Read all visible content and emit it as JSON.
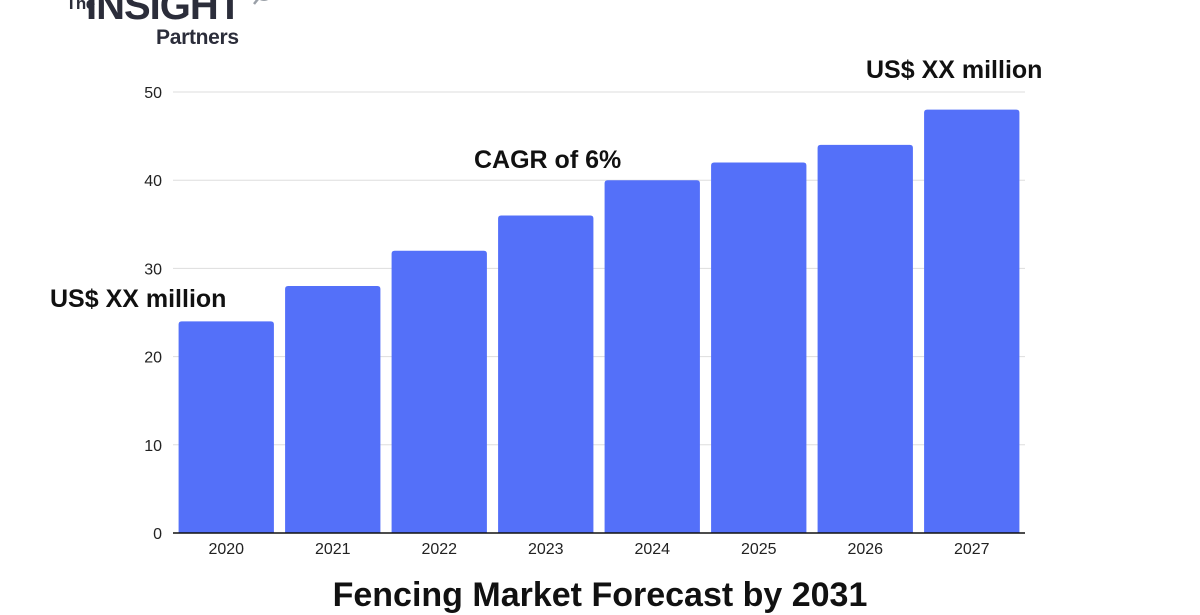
{
  "logo": {
    "the": "The",
    "insight": "INSIGHT",
    "partners": "Partners"
  },
  "annotations": {
    "end_label": "US$ XX million",
    "cagr": "CAGR of 6%",
    "start_label": "US$ XX million"
  },
  "colors": {
    "bar": "#5470f9",
    "grid": "#dddddd",
    "axis": "#111111",
    "logo": "#2b2d3a"
  },
  "chart_data": {
    "type": "bar",
    "title": "Fencing Market Forecast by 2031",
    "categories": [
      "2020",
      "2021",
      "2022",
      "2023",
      "2024",
      "2025",
      "2026",
      "2027"
    ],
    "values": [
      24,
      28,
      32,
      36,
      40,
      42,
      44,
      48
    ],
    "ylim": [
      0,
      50
    ],
    "yticks": [
      0,
      10,
      20,
      30,
      40,
      50
    ],
    "xlabel": "",
    "ylabel": "",
    "grid": true,
    "legend": "none"
  }
}
